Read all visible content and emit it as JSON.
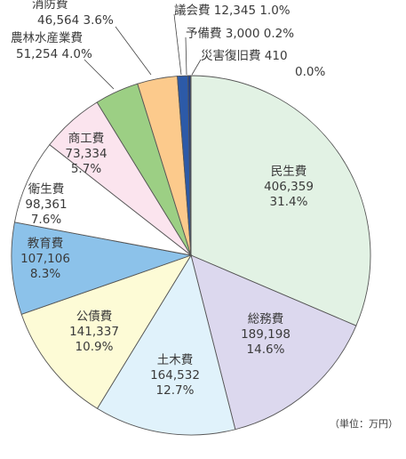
{
  "chart_data": {
    "type": "pie",
    "unit_note": "（単位：万円）",
    "start": "12 o'clock, clockwise",
    "slices": [
      {
        "name": "民生費",
        "value": 406359,
        "percent": "31.4%",
        "value_text": "406,359",
        "color": "#e2f2e4"
      },
      {
        "name": "総務費",
        "value": 189198,
        "percent": "14.6%",
        "value_text": "189,198",
        "color": "#dcd8ee"
      },
      {
        "name": "土木費",
        "value": 164532,
        "percent": "12.7%",
        "value_text": "164,532",
        "color": "#e0f2fb"
      },
      {
        "name": "公債費",
        "value": 141337,
        "percent": "10.9%",
        "value_text": "141,337",
        "color": "#fdfbd6"
      },
      {
        "name": "教育費",
        "value": 107106,
        "percent": "8.3%",
        "value_text": "107,106",
        "color": "#8cc2ea"
      },
      {
        "name": "衛生費",
        "value": 98361,
        "percent": "7.6%",
        "value_text": "98,361",
        "color": "#ffffff"
      },
      {
        "name": "商工費",
        "value": 73334,
        "percent": "5.7%",
        "value_text": "73,334",
        "color": "#fbe4ee"
      },
      {
        "name": "農林水産業費",
        "value": 51254,
        "percent": "4.0%",
        "value_text": "51,254",
        "color": "#9ccf84"
      },
      {
        "name": "消防費",
        "value": 46564,
        "percent": "3.6%",
        "value_text": "46,564",
        "color": "#fcca8c"
      },
      {
        "name": "議会費",
        "value": 12345,
        "percent": "1.0%",
        "value_text": "12,345",
        "color": "#2c5aa8"
      },
      {
        "name": "予備費",
        "value": 3000,
        "percent": "0.2%",
        "value_text": "3,000",
        "color": "#1f3f8a"
      },
      {
        "name": "災害復旧費",
        "value": 410,
        "percent": "0.0%",
        "value_text": "410",
        "color": "#e85a2a"
      }
    ]
  }
}
